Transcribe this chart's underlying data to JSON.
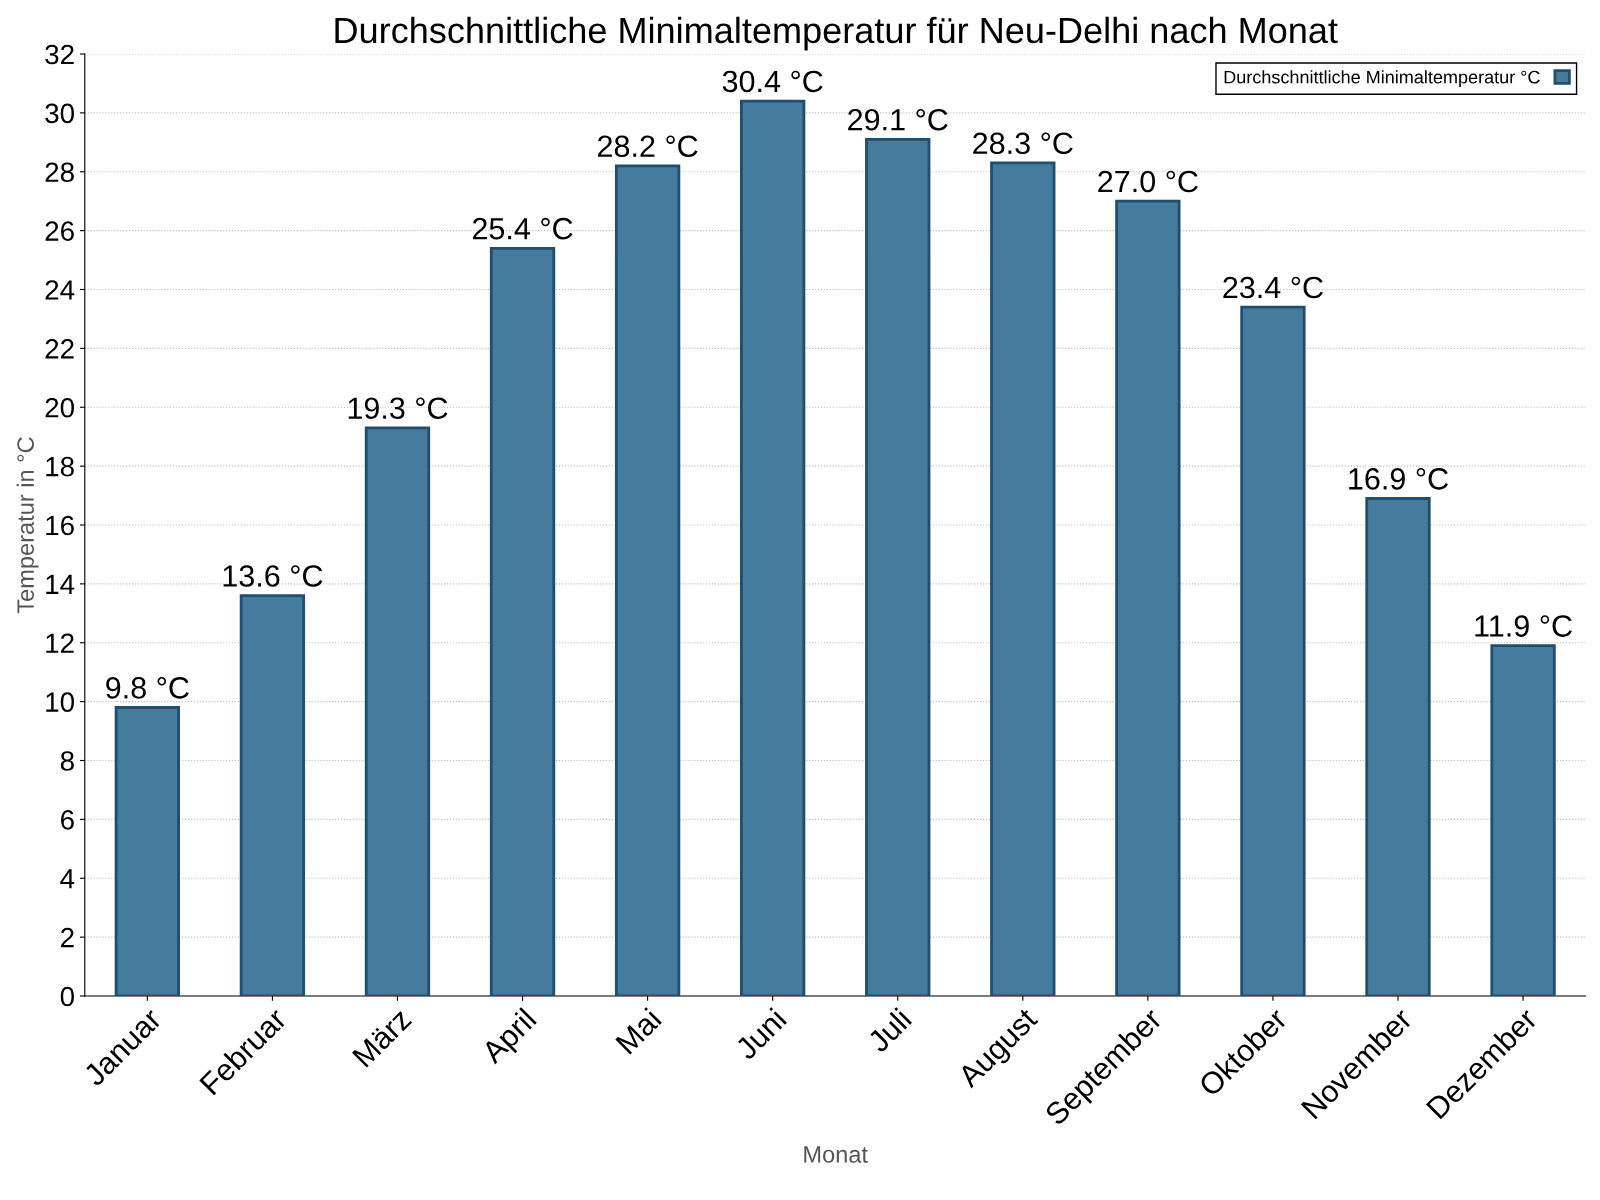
{
  "chart_data": {
    "type": "bar",
    "title": "Durchschnittliche Minimaltemperatur für Neu-Delhi nach Monat",
    "xlabel": "Monat",
    "ylabel": "Temperatur in °C",
    "categories": [
      "Januar",
      "Februar",
      "März",
      "April",
      "Mai",
      "Juni",
      "Juli",
      "August",
      "September",
      "Oktober",
      "November",
      "Dezember"
    ],
    "series": [
      {
        "name": "Durchschnittliche Minimaltemperatur °C",
        "color": "#457b9d",
        "values": [
          9.8,
          13.6,
          19.3,
          25.4,
          28.2,
          30.4,
          29.1,
          28.3,
          27.0,
          23.4,
          16.9,
          11.9
        ],
        "value_labels": [
          "9.8 °C",
          "13.6 °C",
          "19.3 °C",
          "25.4 °C",
          "28.2 °C",
          "30.4 °C",
          "29.1 °C",
          "28.3 °C",
          "27.0 °C",
          "23.4 °C",
          "16.9 °C",
          "11.9 °C"
        ]
      }
    ],
    "ylim": [
      0,
      32
    ],
    "yticks": [
      0,
      2,
      4,
      6,
      8,
      10,
      12,
      14,
      16,
      18,
      20,
      22,
      24,
      26,
      28,
      30,
      32
    ],
    "grid": "y",
    "legend": "top right"
  }
}
